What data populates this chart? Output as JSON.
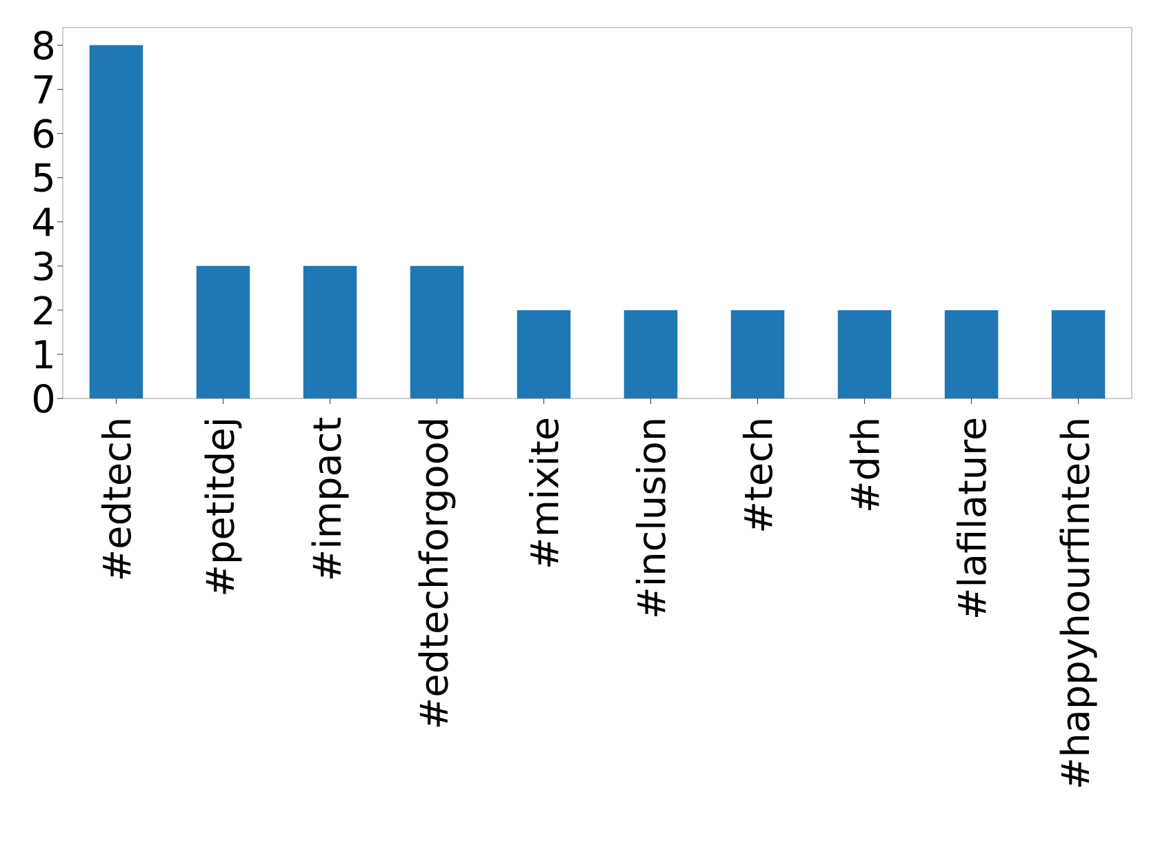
{
  "chart_data": {
    "type": "bar",
    "categories": [
      "#edtech",
      "#petitdej",
      "#impact",
      "#edtechforgood",
      "#mixite",
      "#inclusion",
      "#tech",
      "#drh",
      "#lafilature",
      "#happyhourfintech"
    ],
    "values": [
      8,
      3,
      3,
      3,
      2,
      2,
      2,
      2,
      2,
      2
    ],
    "color": "#1f77b4",
    "ylim": [
      0,
      8.4
    ],
    "yticks": [
      0,
      1,
      2,
      3,
      4,
      5,
      6,
      7,
      8
    ],
    "grid": false
  }
}
